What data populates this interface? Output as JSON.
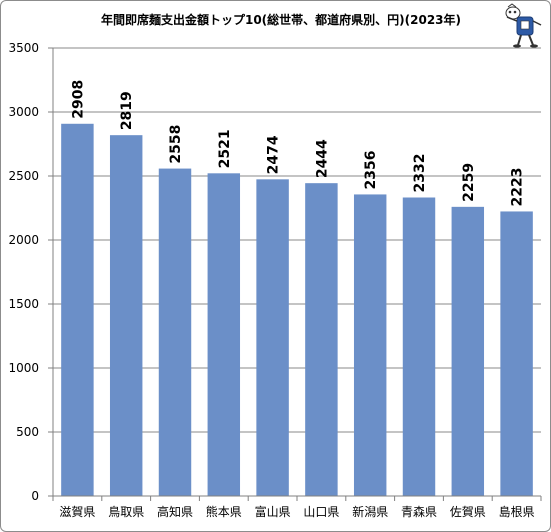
{
  "chart_data": {
    "type": "bar",
    "title": "年間即席麺支出金額トップ10(総世帯、都道府県別、円)(2023年)",
    "categories": [
      "滋賀県",
      "鳥取県",
      "高知県",
      "熊本県",
      "富山県",
      "山口県",
      "新潟県",
      "青森県",
      "佐賀県",
      "島根県"
    ],
    "series": [
      {
        "values": [
          2908,
          2819,
          2558,
          2521,
          2474,
          2444,
          2356,
          2332,
          2259,
          2223
        ]
      }
    ],
    "ylim": [
      0,
      3500
    ],
    "yticks": [
      0,
      500,
      1000,
      1500,
      2000,
      2500,
      3000,
      3500
    ],
    "xlabel": "",
    "ylabel": "",
    "grid": true,
    "legend": "none",
    "colors": {
      "bar": "#6b8fc8",
      "grid": "#8a8a8a",
      "axis": "#808080"
    }
  }
}
